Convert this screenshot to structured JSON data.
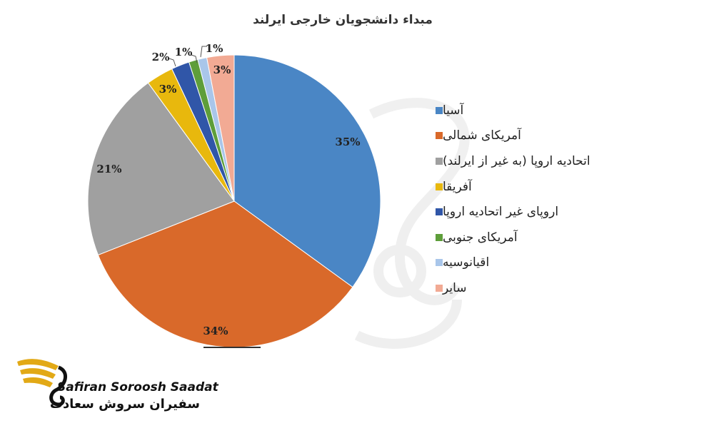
{
  "chart_data": {
    "type": "pie",
    "title": "مبداء دانشجویان خارجی ایرلند",
    "categories": [
      "آسیا",
      "آمریکای شمالی",
      "اتحادیه اروپا (به غیر از ایرلند)",
      "آفریقا",
      "اروپای غیر اتحادیه اروپا",
      "آمریکای جنوبی",
      "اقیانوسیه",
      "سایر"
    ],
    "values": [
      35,
      34,
      21,
      3,
      2,
      1,
      1,
      3
    ],
    "labels": [
      "35%",
      "34%",
      "21%",
      "3%",
      "2%",
      "1%",
      "1%",
      "3%"
    ],
    "colors": [
      "#4a86c5",
      "#d9692a",
      "#a0a0a0",
      "#e8b80d",
      "#3056a8",
      "#5e9e3a",
      "#a9c6ea",
      "#f2aa94"
    ],
    "legend_position": "right"
  },
  "logo": {
    "latin": "Safiran Soroosh Saadat",
    "persian": "سفیران سروش سعادت"
  }
}
